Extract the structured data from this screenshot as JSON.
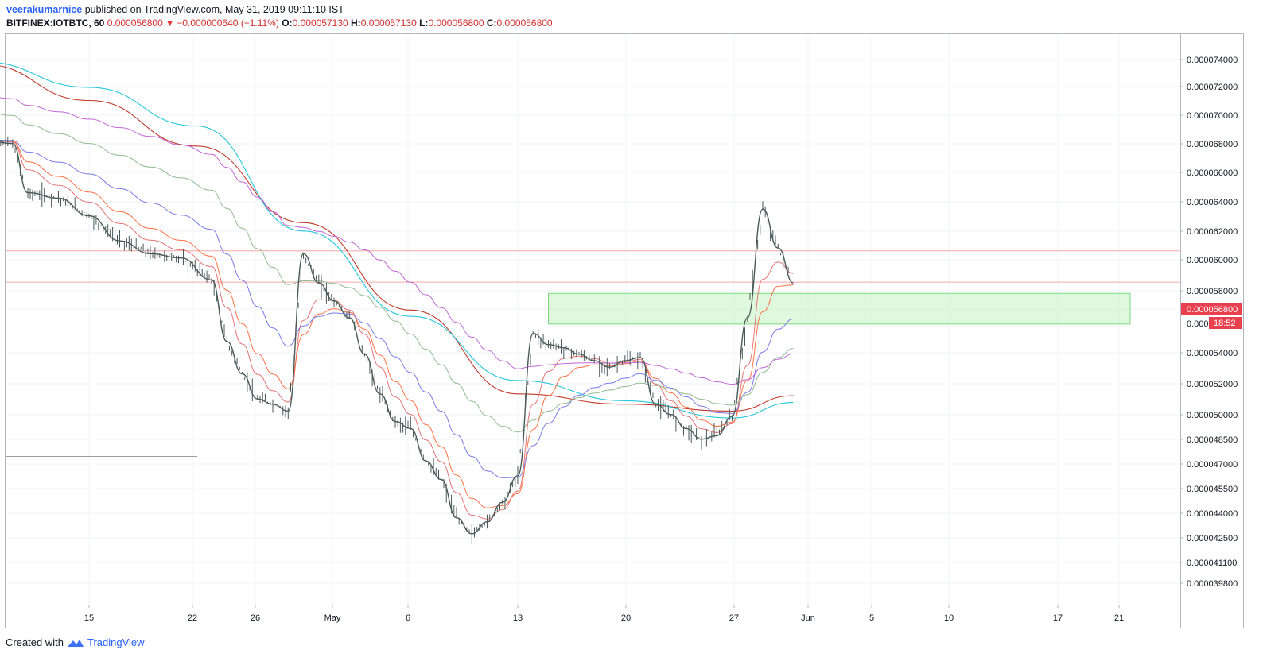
{
  "header": {
    "author": "veerakumarnice",
    "published": "published on TradingView.com, May 31, 2019 09:11:10 IST",
    "symbol": "BITFINEX:IOTBTC, 60",
    "last": "0.000056800",
    "change": "−0.000000640 (−1.11%)",
    "o_label": "O:",
    "o_value": "0.000057130",
    "h_label": "H:",
    "h_value": "0.000057130",
    "l_label": "L:",
    "l_value": "0.000056800",
    "c_label": "C:",
    "c_value": "0.000056800"
  },
  "price_tag": {
    "value": "0.000056800",
    "countdown": "18:52",
    "partial": "0.0000"
  },
  "footer": {
    "created_with": "Created with",
    "brand": "TradingView"
  },
  "colors": {
    "candle": "#4a5a57",
    "ma_fast": "#e57373",
    "ma_orange": "#ff7043",
    "ma_blue": "#7b7bea",
    "ma_green": "#8fbc8f",
    "ma_purple": "#c266d9",
    "ma_red": "#c0392b",
    "ma_cyan": "#26c6da",
    "zone_fill": "#c8f5c8",
    "zone_stroke": "#7ed87e",
    "hline": "#f4a6a6",
    "tag": "#e8404e"
  },
  "chart_data": {
    "type": "line",
    "title": "BITFINEX:IOTBTC, 60",
    "x_ticks": [
      "15",
      "22",
      "26",
      "May",
      "6",
      "13",
      "20",
      "27",
      "Jun",
      "5",
      "10",
      "17",
      "21"
    ],
    "y_ticks": [
      "0.000074000",
      "0.000072000",
      "0.000070000",
      "0.000068000",
      "0.000066000",
      "0.000064000",
      "0.000062000",
      "0.000060000",
      "0.000058000",
      "0.000056800",
      "0.000054000",
      "0.000052000",
      "0.000050000",
      "0.000048500",
      "0.000047000",
      "0.000045500",
      "0.000044000",
      "0.000042500",
      "0.000041100",
      "0.000039800"
    ],
    "y_scale": "log",
    "ylim": [
      3.85e-05,
      7.55e-05
    ],
    "price": {
      "x": [
        "Apr 8",
        "Apr 10",
        "Apr 11",
        "Apr 13",
        "Apr 15",
        "Apr 17",
        "Apr 19",
        "Apr 21",
        "Apr 23",
        "Apr 24",
        "Apr 25",
        "Apr 26",
        "Apr 27",
        "Apr 28",
        "Apr 29",
        "Apr 30",
        "May 1",
        "May 2",
        "May 3",
        "May 4",
        "May 5",
        "May 6",
        "May 7",
        "May 8",
        "May 9",
        "May 10",
        "May 11",
        "May 12",
        "May 13",
        "May 14",
        "May 15",
        "May 16",
        "May 17",
        "May 18",
        "May 19",
        "May 20",
        "May 21",
        "May 22",
        "May 23",
        "May 24",
        "May 25",
        "May 26",
        "May 27",
        "May 28",
        "May 29",
        "May 30",
        "May 31"
      ],
      "y": [
        6.73e-05,
        6.7e-05,
        6.32e-05,
        6.28e-05,
        6.15e-05,
        5.97e-05,
        5.88e-05,
        5.85e-05,
        5.7e-05,
        5.3e-05,
        5.1e-05,
        4.95e-05,
        4.92e-05,
        4.88e-05,
        5.88e-05,
        5.68e-05,
        5.56e-05,
        5.45e-05,
        5.22e-05,
        4.98e-05,
        4.82e-05,
        4.78e-05,
        4.6e-05,
        4.5e-05,
        4.3e-05,
        4.22e-05,
        4.28e-05,
        4.38e-05,
        4.52e-05,
        5.35e-05,
        5.28e-05,
        5.26e-05,
        5.22e-05,
        5.18e-05,
        5.14e-05,
        5.18e-05,
        5.2e-05,
        4.92e-05,
        4.86e-05,
        4.78e-05,
        4.72e-05,
        4.74e-05,
        4.85e-05,
        5.45e-05,
        6.2e-05,
        5.92e-05,
        5.68e-05
      ]
    },
    "moving_averages": [
      {
        "color": "#c0392b",
        "x": [
          "Apr 8",
          "Apr 15",
          "Apr 22",
          "Apr 29",
          "May 6",
          "May 13",
          "May 20",
          "May 27",
          "May 31"
        ],
        "y": [
          7.36e-05,
          7.05e-05,
          6.68e-05,
          6.1e-05,
          5.5e-05,
          4.98e-05,
          4.92e-05,
          4.88e-05,
          4.97e-05
        ]
      },
      {
        "color": "#26c6da",
        "x": [
          "Apr 8",
          "Apr 15",
          "Apr 22",
          "Apr 29",
          "May 6",
          "May 13",
          "May 20",
          "May 27",
          "May 31"
        ],
        "y": [
          7.38e-05,
          7.16e-05,
          6.84e-05,
          6.04e-05,
          5.46e-05,
          5.06e-05,
          4.94e-05,
          4.84e-05,
          4.93e-05
        ]
      }
    ],
    "zone": {
      "from": "May 15",
      "to": "Jun 22",
      "low": 5.41e-05,
      "high": 5.61e-05
    },
    "hlines": [
      5.8999e-05,
      5.685e-05
    ],
    "grid": true,
    "legend": "none"
  }
}
